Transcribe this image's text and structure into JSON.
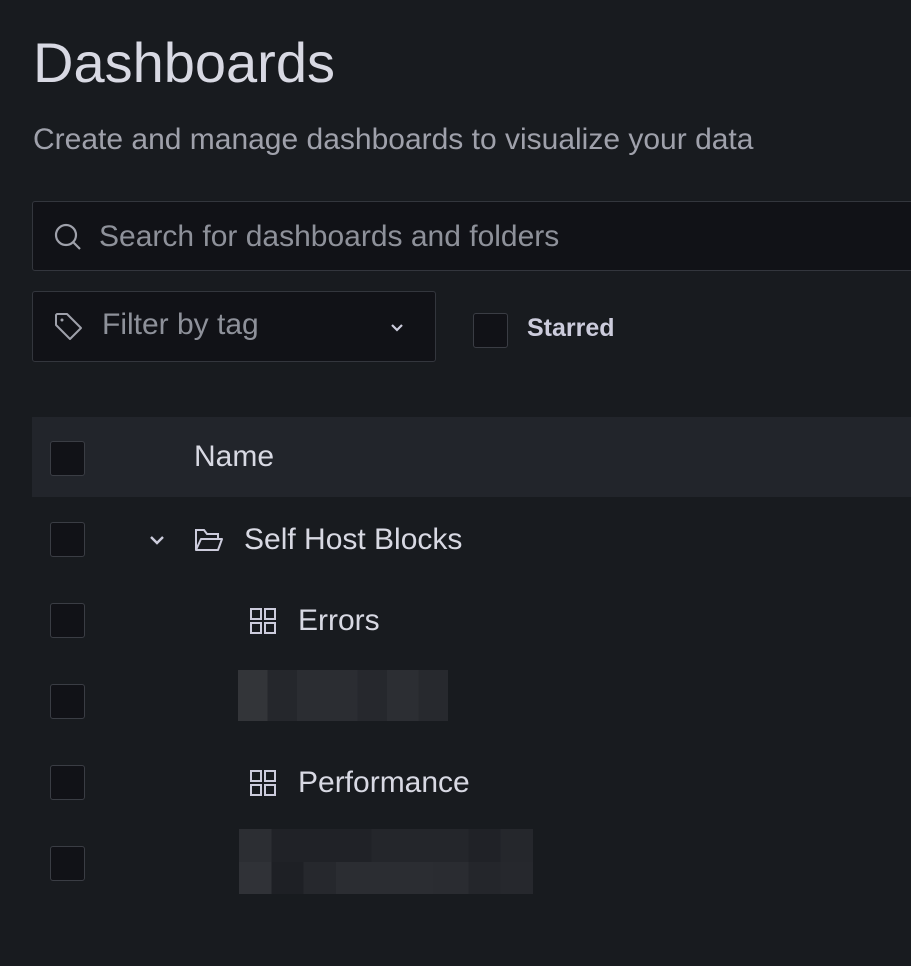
{
  "page": {
    "title": "Dashboards",
    "subtitle": "Create and manage dashboards to visualize your data"
  },
  "search": {
    "placeholder": "Search for dashboards and folders",
    "value": "",
    "icon": "search-icon"
  },
  "filters": {
    "tag_placeholder": "Filter by tag",
    "starred_label": "Starred",
    "starred_checked": false
  },
  "table": {
    "header": {
      "name": "Name"
    },
    "rows": [
      {
        "type": "folder",
        "name": "Self Host Blocks",
        "expanded": true,
        "icon": "folder-open-icon"
      },
      {
        "type": "dashboard",
        "name": "Errors",
        "icon": "dashboard-grid-icon"
      },
      {
        "type": "redacted"
      },
      {
        "type": "dashboard",
        "name": "Performance",
        "icon": "dashboard-grid-icon"
      },
      {
        "type": "redacted"
      }
    ]
  },
  "colors": {
    "background": "#181b1f",
    "input_bg": "#111217",
    "header_bg": "#22252b",
    "text": "#ccccdc"
  }
}
